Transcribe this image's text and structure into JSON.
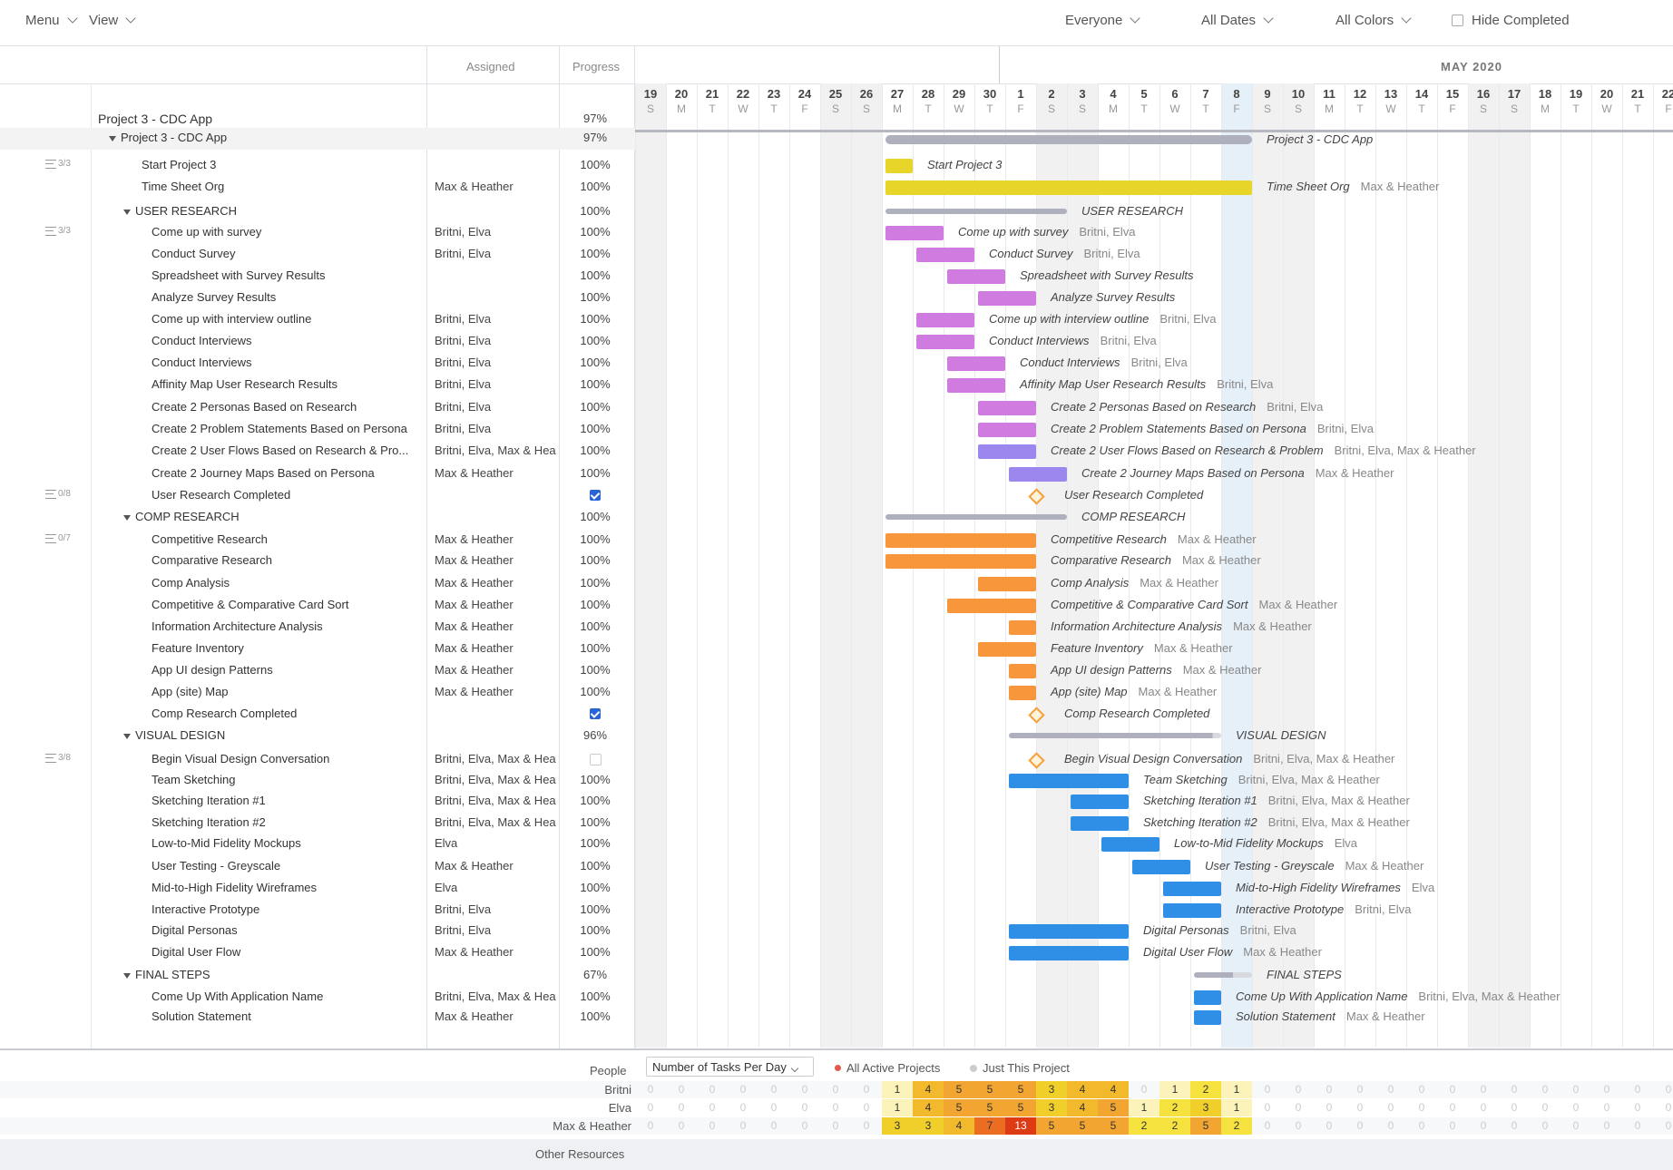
{
  "toolbar": {
    "menu": "Menu",
    "view": "View",
    "everyone": "Everyone",
    "all_dates": "All Dates",
    "all_colors": "All Colors",
    "hide_completed": "Hide Completed"
  },
  "columns": {
    "assigned": "Assigned",
    "progress": "Progress"
  },
  "timeline": {
    "month_label": "MAY 2020",
    "days": [
      {
        "d": "19",
        "w": "S"
      },
      {
        "d": "20",
        "w": "M"
      },
      {
        "d": "21",
        "w": "T"
      },
      {
        "d": "22",
        "w": "W"
      },
      {
        "d": "23",
        "w": "T"
      },
      {
        "d": "24",
        "w": "F"
      },
      {
        "d": "25",
        "w": "S"
      },
      {
        "d": "26",
        "w": "S"
      },
      {
        "d": "27",
        "w": "M"
      },
      {
        "d": "28",
        "w": "T"
      },
      {
        "d": "29",
        "w": "W"
      },
      {
        "d": "30",
        "w": "T"
      },
      {
        "d": "1",
        "w": "F"
      },
      {
        "d": "2",
        "w": "S"
      },
      {
        "d": "3",
        "w": "S"
      },
      {
        "d": "4",
        "w": "M"
      },
      {
        "d": "5",
        "w": "T"
      },
      {
        "d": "6",
        "w": "W"
      },
      {
        "d": "7",
        "w": "T"
      },
      {
        "d": "8",
        "w": "F"
      },
      {
        "d": "9",
        "w": "S"
      },
      {
        "d": "10",
        "w": "S"
      },
      {
        "d": "11",
        "w": "M"
      },
      {
        "d": "12",
        "w": "T"
      },
      {
        "d": "13",
        "w": "W"
      },
      {
        "d": "14",
        "w": "T"
      },
      {
        "d": "15",
        "w": "F"
      },
      {
        "d": "16",
        "w": "S"
      },
      {
        "d": "17",
        "w": "S"
      },
      {
        "d": "18",
        "w": "M"
      },
      {
        "d": "19",
        "w": "T"
      },
      {
        "d": "20",
        "w": "W"
      },
      {
        "d": "21",
        "w": "T"
      },
      {
        "d": "22",
        "w": "F"
      }
    ],
    "highlighted_day": "8"
  },
  "project": {
    "name": "Project 3 - CDC App",
    "progress": "97%"
  },
  "colors": {
    "yellow": "#e8d52a",
    "purple": "#d07be0",
    "violet": "#9b87ee",
    "orange": "#f7963a",
    "blue": "#2f8fe6",
    "group": "#aeb1bd"
  },
  "tasks": [
    {
      "type": "group",
      "level": 0,
      "name": "Project 3 - CDC App",
      "assigned": "",
      "progress": "97%",
      "start": 8,
      "end": 20,
      "fill": 1.0,
      "subtasks": ""
    },
    {
      "type": "task",
      "name": "Start Project 3",
      "assigned": "",
      "progress": "100%",
      "start": 8,
      "end": 9,
      "color": "yellow",
      "subtasks": "3/3",
      "label_assign": ""
    },
    {
      "type": "task",
      "name": "Time Sheet Org",
      "assigned": "Max & Heather",
      "progress": "100%",
      "start": 8,
      "end": 20,
      "color": "yellow",
      "subtasks": "",
      "label_assign": "Max & Heather"
    },
    {
      "type": "group",
      "level": 1,
      "name": "USER RESEARCH",
      "assigned": "",
      "progress": "100%",
      "start": 8,
      "end": 14,
      "fill": 1.0,
      "subtasks": ""
    },
    {
      "type": "task",
      "name": "Come up with survey",
      "assigned": "Britni, Elva",
      "progress": "100%",
      "start": 8,
      "end": 10,
      "color": "purple",
      "subtasks": "3/3",
      "label_assign": "Britni, Elva"
    },
    {
      "type": "task",
      "name": "Conduct Survey",
      "assigned": "Britni, Elva",
      "progress": "100%",
      "start": 9,
      "end": 11,
      "color": "purple",
      "subtasks": "",
      "label_assign": "Britni, Elva"
    },
    {
      "type": "task",
      "name": "Spreadsheet with Survey Results",
      "assigned": "",
      "progress": "100%",
      "start": 10,
      "end": 12,
      "color": "purple",
      "subtasks": "",
      "label_assign": ""
    },
    {
      "type": "task",
      "name": "Analyze Survey Results",
      "assigned": "",
      "progress": "100%",
      "start": 11,
      "end": 13,
      "color": "purple",
      "subtasks": "",
      "label_assign": ""
    },
    {
      "type": "task",
      "name": "Come up with interview outline",
      "assigned": "Britni, Elva",
      "progress": "100%",
      "start": 9,
      "end": 11,
      "color": "purple",
      "subtasks": "",
      "label_assign": "Britni, Elva"
    },
    {
      "type": "task",
      "name": "Conduct Interviews",
      "assigned": "Britni, Elva",
      "progress": "100%",
      "start": 9,
      "end": 11,
      "color": "purple",
      "subtasks": "",
      "label_assign": "Britni, Elva"
    },
    {
      "type": "task",
      "name": "Conduct Interviews",
      "assigned": "Britni, Elva",
      "progress": "100%",
      "start": 10,
      "end": 12,
      "color": "purple",
      "subtasks": "",
      "label_assign": "Britni, Elva"
    },
    {
      "type": "task",
      "name": "Affinity Map User Research Results",
      "assigned": "Britni, Elva",
      "progress": "100%",
      "start": 10,
      "end": 12,
      "color": "purple",
      "subtasks": "",
      "label_assign": "Britni, Elva"
    },
    {
      "type": "task",
      "name": "Create 2 Personas Based on Research",
      "assigned": "Britni, Elva",
      "progress": "100%",
      "start": 11,
      "end": 13,
      "color": "purple",
      "subtasks": "",
      "label_assign": "Britni, Elva"
    },
    {
      "type": "task",
      "name": "Create 2 Problem Statements Based on Persona",
      "assigned": "Britni, Elva",
      "progress": "100%",
      "start": 11,
      "end": 13,
      "color": "purple",
      "subtasks": "",
      "label_assign": "Britni, Elva"
    },
    {
      "type": "task",
      "name": "Create 2 User Flows Based on Research & Pro...",
      "label_name": "Create 2 User Flows Based on Research & Problem",
      "assigned": "Britni, Elva, Max & Heather",
      "progress": "100%",
      "start": 11,
      "end": 13,
      "color": "violet",
      "subtasks": "",
      "label_assign": "Britni, Elva, Max & Heather"
    },
    {
      "type": "task",
      "name": "Create 2 Journey Maps Based on Persona",
      "assigned": "Max & Heather",
      "progress": "100%",
      "start": 12,
      "end": 14,
      "color": "violet",
      "subtasks": "",
      "label_assign": "Max & Heather"
    },
    {
      "type": "milestone",
      "name": "User Research Completed",
      "assigned": "",
      "progress": "check",
      "checked": true,
      "at": 13,
      "subtasks": "0/8",
      "label_assign": ""
    },
    {
      "type": "group",
      "level": 1,
      "name": "COMP RESEARCH",
      "assigned": "",
      "progress": "100%",
      "start": 8,
      "end": 14,
      "fill": 1.0,
      "subtasks": ""
    },
    {
      "type": "task",
      "name": "Competitive Research",
      "assigned": "Max & Heather",
      "progress": "100%",
      "start": 8,
      "end": 13,
      "color": "orange",
      "subtasks": "0/7",
      "label_assign": "Max & Heather"
    },
    {
      "type": "task",
      "name": "Comparative Research",
      "assigned": "Max & Heather",
      "progress": "100%",
      "start": 8,
      "end": 13,
      "color": "orange",
      "subtasks": "",
      "label_assign": "Max & Heather"
    },
    {
      "type": "task",
      "name": "Comp Analysis",
      "assigned": "Max & Heather",
      "progress": "100%",
      "start": 11,
      "end": 13,
      "color": "orange",
      "subtasks": "",
      "label_assign": "Max & Heather"
    },
    {
      "type": "task",
      "name": "Competitive & Comparative Card Sort",
      "assigned": "Max & Heather",
      "progress": "100%",
      "start": 10,
      "end": 13,
      "color": "orange",
      "subtasks": "",
      "label_assign": "Max & Heather"
    },
    {
      "type": "task",
      "name": "Information Architecture Analysis",
      "assigned": "Max & Heather",
      "progress": "100%",
      "start": 12,
      "end": 13,
      "color": "orange",
      "subtasks": "",
      "label_assign": "Max & Heather"
    },
    {
      "type": "task",
      "name": "Feature Inventory",
      "assigned": "Max & Heather",
      "progress": "100%",
      "start": 11,
      "end": 13,
      "color": "orange",
      "subtasks": "",
      "label_assign": "Max & Heather"
    },
    {
      "type": "task",
      "name": "App UI design Patterns",
      "assigned": "Max & Heather",
      "progress": "100%",
      "start": 12,
      "end": 13,
      "color": "orange",
      "subtasks": "",
      "label_assign": "Max & Heather"
    },
    {
      "type": "task",
      "name": "App (site) Map",
      "assigned": "Max & Heather",
      "progress": "100%",
      "start": 12,
      "end": 13,
      "color": "orange",
      "subtasks": "",
      "label_assign": "Max & Heather"
    },
    {
      "type": "milestone",
      "name": "Comp Research Completed",
      "assigned": "",
      "progress": "check",
      "checked": true,
      "at": 13,
      "subtasks": "",
      "label_assign": ""
    },
    {
      "type": "group",
      "level": 1,
      "name": "VISUAL DESIGN",
      "assigned": "",
      "progress": "96%",
      "start": 12,
      "end": 19,
      "fill": 0.96,
      "subtasks": ""
    },
    {
      "type": "milestone",
      "name": "Begin Visual Design Conversation",
      "assigned": "Britni, Elva, Max & Heather",
      "progress": "check",
      "checked": false,
      "at": 13,
      "subtasks": "3/8",
      "label_assign": "Britni, Elva, Max & Heather"
    },
    {
      "type": "task",
      "name": "Team Sketching",
      "assigned": "Britni, Elva, Max & Heather",
      "progress": "100%",
      "start": 12,
      "end": 16,
      "color": "blue",
      "subtasks": "",
      "label_assign": "Britni, Elva, Max & Heather"
    },
    {
      "type": "task",
      "name": "Sketching Iteration #1",
      "assigned": "Britni, Elva, Max & Heather",
      "progress": "100%",
      "start": 14,
      "end": 16,
      "color": "blue",
      "subtasks": "",
      "label_assign": "Britni, Elva, Max & Heather"
    },
    {
      "type": "task",
      "name": "Sketching Iteration #2",
      "assigned": "Britni, Elva, Max & Heather",
      "progress": "100%",
      "start": 14,
      "end": 16,
      "color": "blue",
      "subtasks": "",
      "label_assign": "Britni, Elva, Max & Heather"
    },
    {
      "type": "task",
      "name": "Low-to-Mid Fidelity Mockups",
      "assigned": "Elva",
      "progress": "100%",
      "start": 15,
      "end": 17,
      "color": "blue",
      "subtasks": "",
      "label_assign": "Elva"
    },
    {
      "type": "task",
      "name": "User Testing - Greyscale",
      "assigned": "Max & Heather",
      "progress": "100%",
      "start": 16,
      "end": 18,
      "color": "blue",
      "subtasks": "",
      "label_assign": "Max & Heather"
    },
    {
      "type": "task",
      "name": "Mid-to-High Fidelity Wireframes",
      "assigned": "Elva",
      "progress": "100%",
      "start": 17,
      "end": 19,
      "color": "blue",
      "subtasks": "",
      "label_assign": "Elva"
    },
    {
      "type": "task",
      "name": "Interactive Prototype",
      "assigned": "Britni, Elva",
      "progress": "100%",
      "start": 17,
      "end": 19,
      "color": "blue",
      "subtasks": "",
      "label_assign": "Britni, Elva"
    },
    {
      "type": "task",
      "name": "Digital Personas",
      "assigned": "Britni, Elva",
      "progress": "100%",
      "start": 12,
      "end": 16,
      "color": "blue",
      "subtasks": "",
      "label_assign": "Britni, Elva"
    },
    {
      "type": "task",
      "name": "Digital User Flow",
      "assigned": "Max & Heather",
      "progress": "100%",
      "start": 12,
      "end": 16,
      "color": "blue",
      "subtasks": "",
      "label_assign": "Max & Heather"
    },
    {
      "type": "group",
      "level": 1,
      "name": "FINAL STEPS",
      "assigned": "",
      "progress": "67%",
      "start": 18,
      "end": 20,
      "fill": 0.67,
      "subtasks": ""
    },
    {
      "type": "task",
      "name": "Come Up With Application Name",
      "assigned": "Britni, Elva, Max & Heather",
      "progress": "100%",
      "start": 18,
      "end": 19,
      "color": "blue",
      "subtasks": "",
      "label_assign": "Britni, Elva, Max & Heather"
    },
    {
      "type": "task",
      "name": "Solution Statement",
      "assigned": "Max & Heather",
      "progress": "100%",
      "start": 18,
      "end": 19,
      "color": "blue",
      "subtasks": "",
      "label_assign": "Max & Heather"
    }
  ],
  "workload": {
    "people_label": "People",
    "metric_select": "Number of Tasks Per Day",
    "opt_all": "All Active Projects",
    "opt_this": "Just This Project",
    "other_resources": "Other Resources",
    "people": [
      {
        "name": "Britni",
        "values": [
          0,
          0,
          0,
          0,
          0,
          0,
          0,
          0,
          1,
          4,
          5,
          5,
          5,
          3,
          4,
          4,
          0,
          1,
          2,
          1,
          0,
          0,
          0,
          0,
          0,
          0,
          0,
          0,
          0,
          0,
          0,
          0,
          0,
          0
        ]
      },
      {
        "name": "Elva",
        "values": [
          0,
          0,
          0,
          0,
          0,
          0,
          0,
          0,
          1,
          4,
          5,
          5,
          5,
          3,
          4,
          5,
          1,
          2,
          3,
          1,
          0,
          0,
          0,
          0,
          0,
          0,
          0,
          0,
          0,
          0,
          0,
          0,
          0,
          0
        ]
      },
      {
        "name": "Max & Heather",
        "values": [
          0,
          0,
          0,
          0,
          0,
          0,
          0,
          0,
          3,
          3,
          4,
          7,
          13,
          5,
          5,
          5,
          2,
          2,
          5,
          2,
          0,
          0,
          0,
          0,
          0,
          0,
          0,
          0,
          0,
          0,
          0,
          0,
          0,
          0
        ]
      }
    ]
  }
}
